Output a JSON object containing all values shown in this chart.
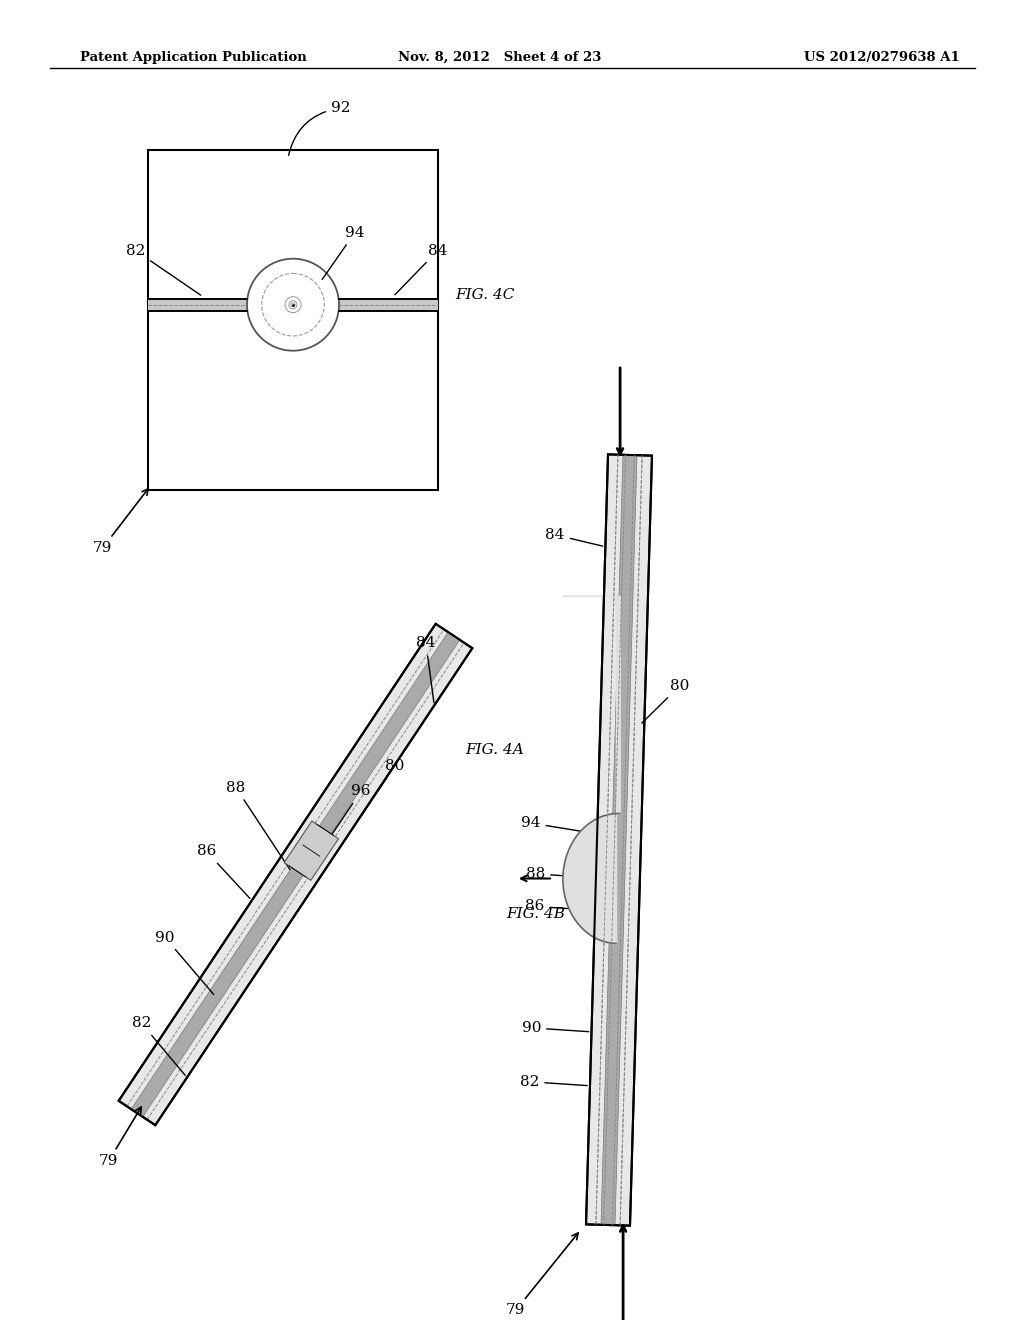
{
  "header_left": "Patent Application Publication",
  "header_mid": "Nov. 8, 2012   Sheet 4 of 23",
  "header_right": "US 2012/0279638 A1",
  "bg_color": "#ffffff",
  "fig4c_label": "FIG. 4C",
  "fig4a_label": "FIG. 4A",
  "fig4b_label": "FIG. 4B"
}
